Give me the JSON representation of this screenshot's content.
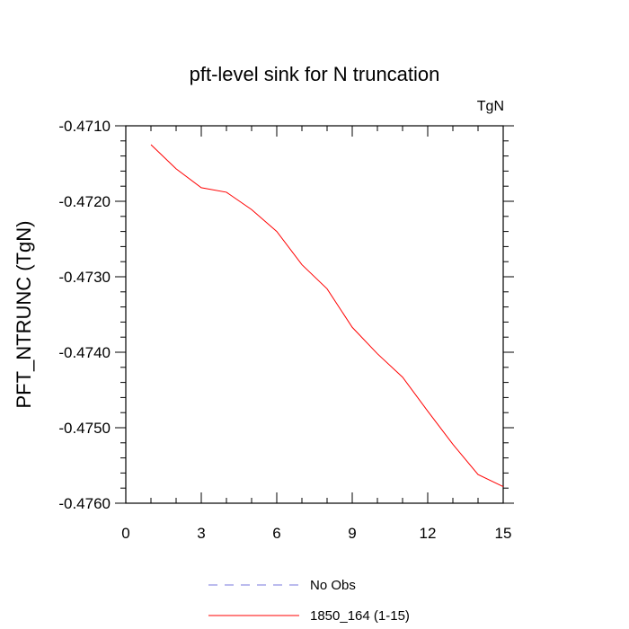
{
  "chart_data": {
    "type": "line",
    "title": "pft-level sink for N truncation",
    "units_label": "TgN",
    "xlabel": "",
    "ylabel": "PFT_NTRUNC  (TgN)",
    "xlim": [
      0,
      15
    ],
    "ylim": [
      -0.476,
      -0.471
    ],
    "x_ticks": [
      0,
      3,
      6,
      9,
      12,
      15
    ],
    "x_tick_labels": [
      "0",
      "3",
      "6",
      "9",
      "12",
      "15"
    ],
    "y_ticks": [
      -0.471,
      -0.472,
      -0.473,
      -0.474,
      -0.475,
      -0.476
    ],
    "y_tick_labels": [
      "-0.4710",
      "-0.4720",
      "-0.4730",
      "-0.4740",
      "-0.4750",
      "-0.4760"
    ],
    "grid": false,
    "legend_position": "bottom",
    "series": [
      {
        "name": "No Obs",
        "color": "#7777dd",
        "dashed": true,
        "x": [],
        "y": []
      },
      {
        "name": "1850_164 (1-15)",
        "color": "#ff0000",
        "dashed": false,
        "x": [
          1,
          2,
          3,
          4,
          5,
          6,
          7,
          8,
          9,
          10,
          11,
          12,
          13,
          14,
          15
        ],
        "y": [
          -0.47125,
          -0.47157,
          -0.47182,
          -0.47188,
          -0.47211,
          -0.4724,
          -0.47284,
          -0.47316,
          -0.47367,
          -0.47402,
          -0.47433,
          -0.47478,
          -0.47522,
          -0.47562,
          -0.47578
        ]
      }
    ]
  }
}
